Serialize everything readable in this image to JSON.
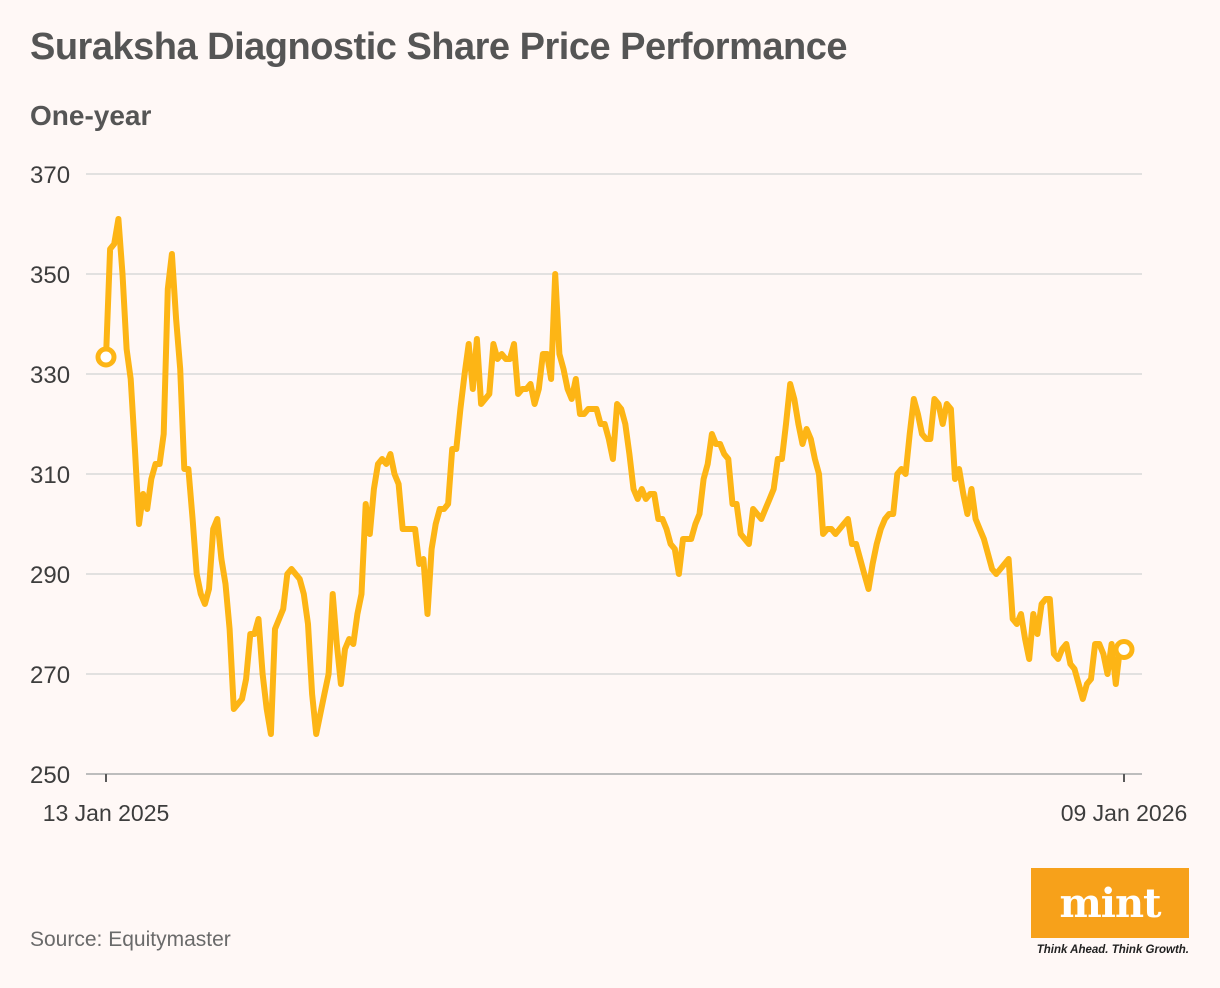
{
  "page": {
    "title": "Suraksha Diagnostic Share Price Performance",
    "subtitle": "One-year",
    "source": "Source: Equitymaster"
  },
  "branding": {
    "logo_text": "mint",
    "tagline": "Think Ahead. Think Growth.",
    "logo_color": "#f7a11a"
  },
  "colors": {
    "line": "#fdb515",
    "grid": "#d9d9d9",
    "background": "#fff8f6",
    "axis_text": "#3d3d3d"
  },
  "chart_data": {
    "type": "line",
    "title": "Suraksha Diagnostic Share Price Performance",
    "subtitle": "One-year",
    "xlabel": "",
    "ylabel": "",
    "ylim": [
      250,
      370
    ],
    "yticks": [
      250,
      270,
      290,
      310,
      330,
      350,
      370
    ],
    "ytick_labels": [
      "250",
      "270",
      "290",
      "310",
      "330",
      "350",
      "370"
    ],
    "x_start_label": "13 Jan 2025",
    "x_end_label": "09 Jan 2026",
    "grid": true,
    "legend": "none",
    "start_marker_value": 333.4,
    "end_marker_value": 274.9,
    "series": [
      {
        "name": "Share Price",
        "values": [
          333.4,
          355,
          356,
          361,
          350,
          335,
          329,
          315,
          300,
          306,
          303,
          309,
          312,
          312,
          318,
          347,
          354,
          341,
          331,
          311,
          311,
          301,
          290,
          286,
          284,
          287,
          299,
          301,
          293,
          288,
          279,
          263,
          264,
          265,
          269,
          278,
          278,
          281,
          270,
          263,
          258,
          279,
          281,
          283,
          290,
          291,
          290,
          289,
          286,
          280,
          266,
          258,
          262,
          266,
          270,
          286,
          276,
          268,
          275,
          277,
          276,
          282,
          286,
          304,
          298,
          307,
          312,
          313,
          312,
          314,
          310,
          308,
          299,
          299,
          299,
          299,
          292,
          293,
          282,
          295,
          300,
          303,
          303,
          304,
          315,
          315,
          323,
          330,
          336,
          327,
          337,
          324,
          325,
          326,
          336,
          333,
          334,
          333,
          333,
          336,
          326,
          327,
          327,
          328,
          324,
          327,
          334,
          334,
          329,
          350,
          334,
          331,
          327,
          325,
          329,
          322,
          322,
          323,
          323,
          323,
          320,
          320,
          317,
          313,
          324,
          323,
          320,
          314,
          307,
          305,
          307,
          305,
          306,
          306,
          301,
          301,
          299,
          296,
          295,
          290,
          297,
          297,
          297,
          300,
          302,
          309,
          312,
          318,
          316,
          316,
          314,
          313,
          304,
          304,
          298,
          297,
          296,
          303,
          302,
          301,
          303,
          305,
          307,
          313,
          313,
          320,
          328,
          325,
          320,
          316,
          319,
          317,
          313,
          310,
          298,
          299,
          299,
          298,
          299,
          300,
          301,
          296,
          296,
          293,
          290,
          287,
          292,
          296,
          299,
          301,
          302,
          302,
          310,
          311,
          310,
          318,
          325,
          322,
          318,
          317,
          317,
          325,
          324,
          320,
          324,
          323,
          309,
          311,
          306,
          302,
          307,
          301,
          299,
          297,
          294,
          291,
          290,
          291,
          292,
          293,
          281,
          280,
          282,
          277,
          273,
          282,
          278,
          284,
          285,
          285,
          274,
          273,
          275,
          276,
          272,
          271,
          268,
          265,
          268,
          269,
          276,
          276,
          274,
          270,
          276,
          268,
          275,
          275
        ]
      }
    ]
  }
}
